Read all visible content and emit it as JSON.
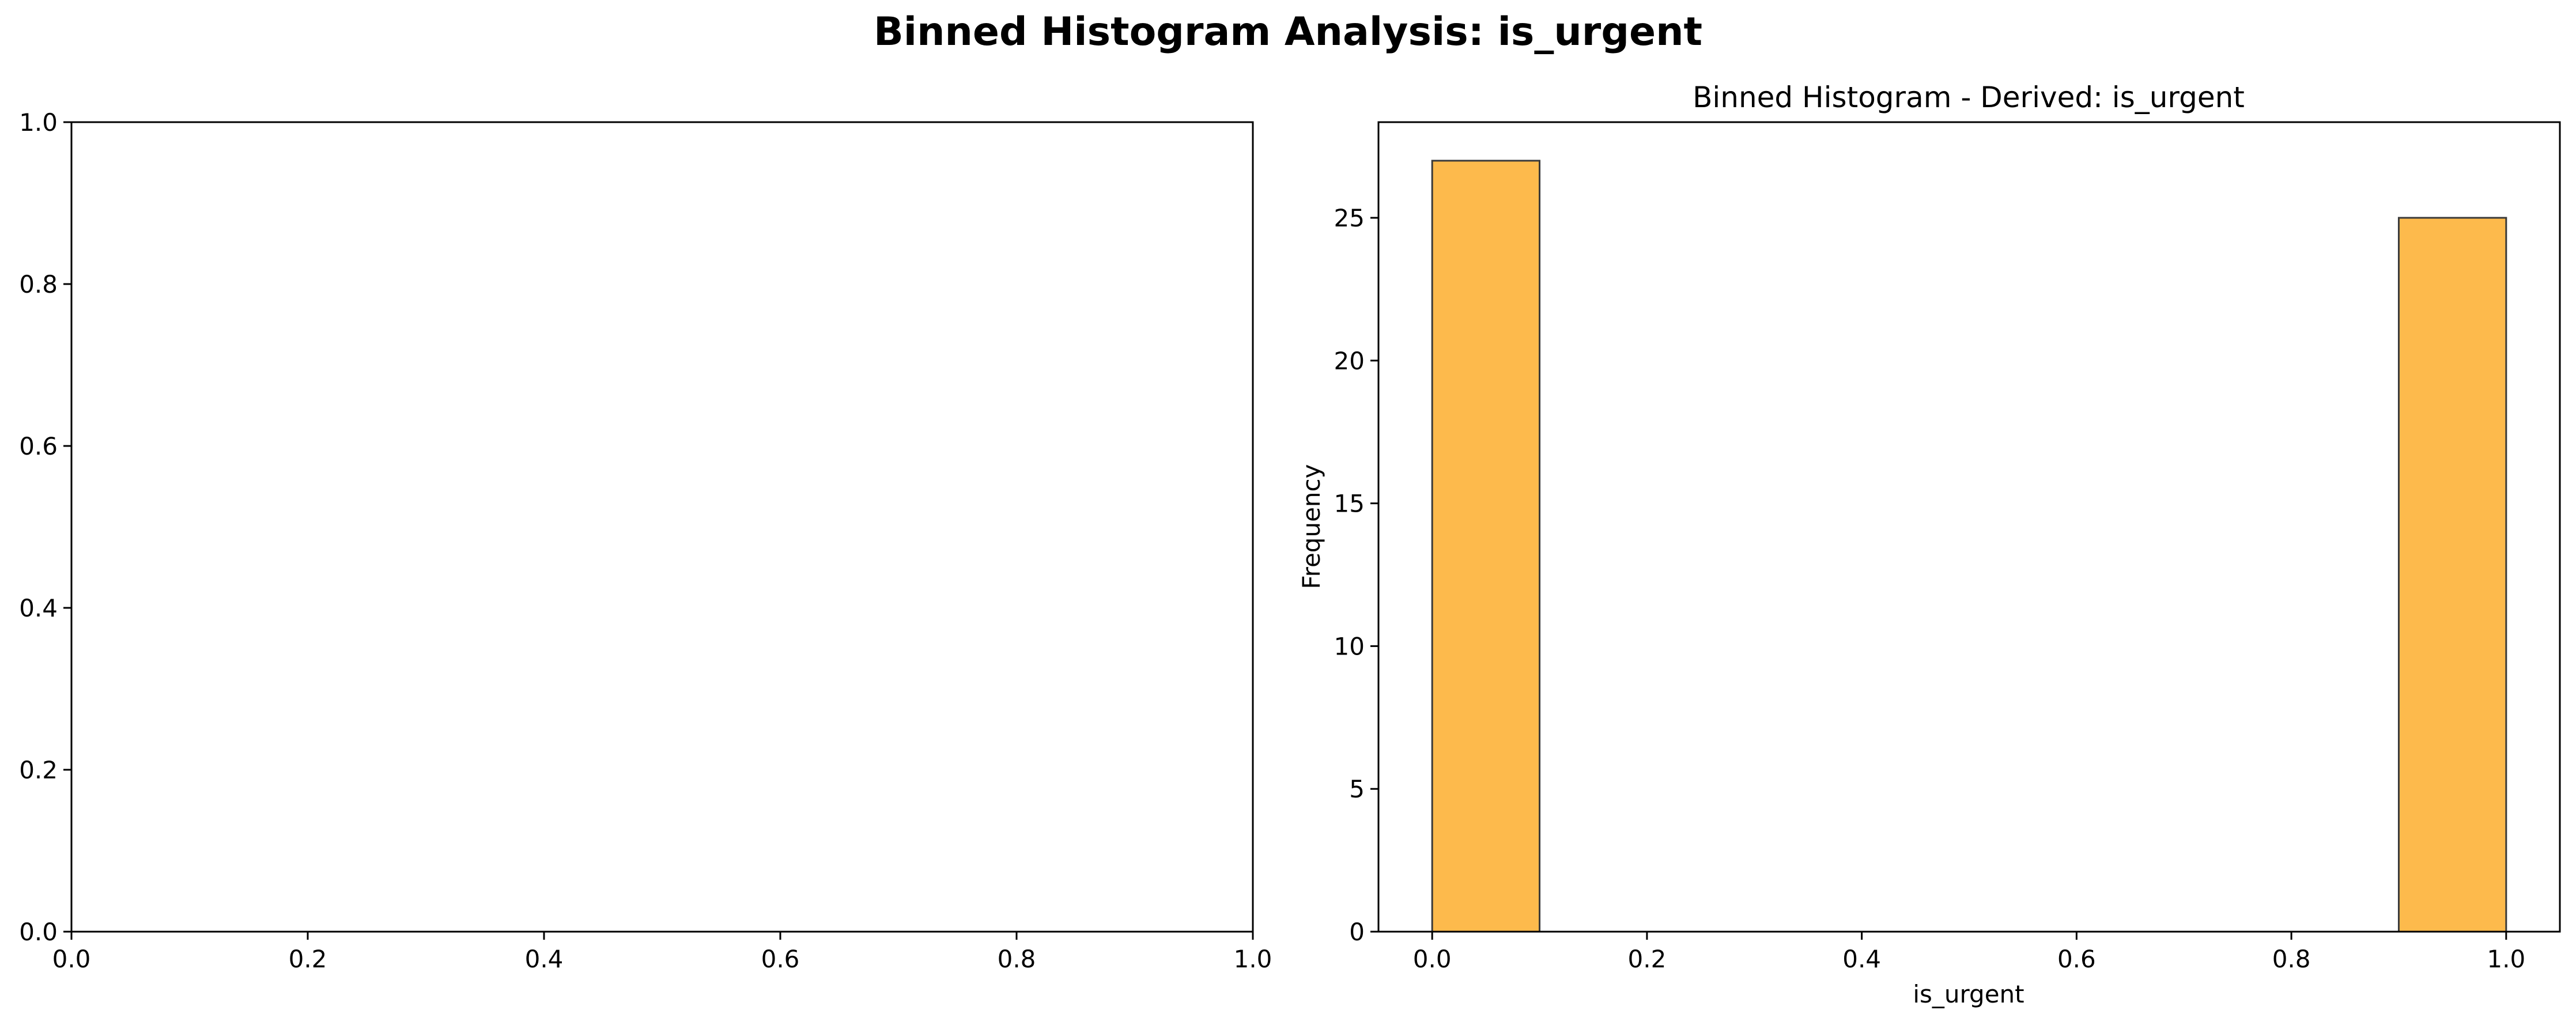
{
  "figure": {
    "suptitle": "Binned Histogram Analysis: is_urgent"
  },
  "chart_data": [
    {
      "type": "bar",
      "title": "",
      "xlabel": "",
      "ylabel": "",
      "xlim": [
        0,
        1
      ],
      "ylim": [
        0,
        1
      ],
      "xticks": [
        "0.0",
        "0.2",
        "0.4",
        "0.6",
        "0.8",
        "1.0"
      ],
      "yticks": [
        "0.0",
        "0.2",
        "0.4",
        "0.6",
        "0.8",
        "1.0"
      ],
      "series": [],
      "grid": false
    },
    {
      "type": "bar",
      "title": "Binned Histogram - Derived: is_urgent",
      "xlabel": "is_urgent",
      "ylabel": "Frequency",
      "xlim": [
        -0.05,
        1.05
      ],
      "ylim": [
        0,
        28.35
      ],
      "xticks": [
        "0.0",
        "0.2",
        "0.4",
        "0.6",
        "0.8",
        "1.0"
      ],
      "yticks": [
        "0",
        "5",
        "10",
        "15",
        "20",
        "25"
      ],
      "bins": [
        {
          "start": 0.0,
          "end": 0.1,
          "count": 27
        },
        {
          "start": 0.1,
          "end": 0.2,
          "count": 0
        },
        {
          "start": 0.2,
          "end": 0.3,
          "count": 0
        },
        {
          "start": 0.3,
          "end": 0.4,
          "count": 0
        },
        {
          "start": 0.4,
          "end": 0.5,
          "count": 0
        },
        {
          "start": 0.5,
          "end": 0.6,
          "count": 0
        },
        {
          "start": 0.6,
          "end": 0.7,
          "count": 0
        },
        {
          "start": 0.7,
          "end": 0.8,
          "count": 0
        },
        {
          "start": 0.8,
          "end": 0.9,
          "count": 0
        },
        {
          "start": 0.9,
          "end": 1.0,
          "count": 25
        }
      ],
      "bar_color": "#FDBA4C",
      "edge_color": "#3A3A3A",
      "grid": false
    }
  ]
}
